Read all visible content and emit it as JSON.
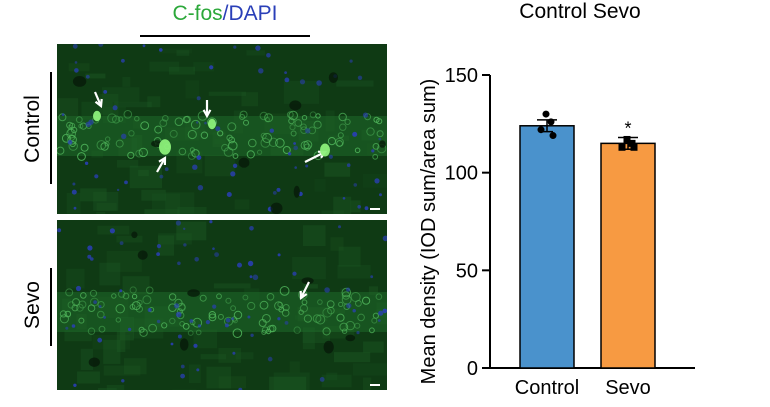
{
  "micrograph": {
    "header_green": "C-fos",
    "header_slash": "/",
    "header_blue": "DAPI",
    "rows": [
      {
        "label": "Control"
      },
      {
        "label": "Sevo"
      }
    ],
    "colors": {
      "stain_green": "#2ca83a",
      "stain_blue": "#2a3fb8",
      "tissue_bg": "#0f3a14"
    }
  },
  "chart_data": {
    "type": "bar",
    "title": "Control Sevo",
    "ylabel": "Mean density (IOD sum/area sum)",
    "xlabel": "",
    "categories": [
      "Control",
      "Sevo"
    ],
    "values": [
      124,
      115
    ],
    "errors": [
      3,
      3
    ],
    "points": [
      [
        130,
        126,
        122,
        119
      ],
      [
        117,
        115,
        113,
        113
      ]
    ],
    "annotations": [
      "",
      "*"
    ],
    "colors": [
      "#4a92cc",
      "#f79a42"
    ],
    "ylim": [
      0,
      150
    ],
    "yticks": [
      0,
      50,
      100,
      150
    ],
    "grid": false
  }
}
